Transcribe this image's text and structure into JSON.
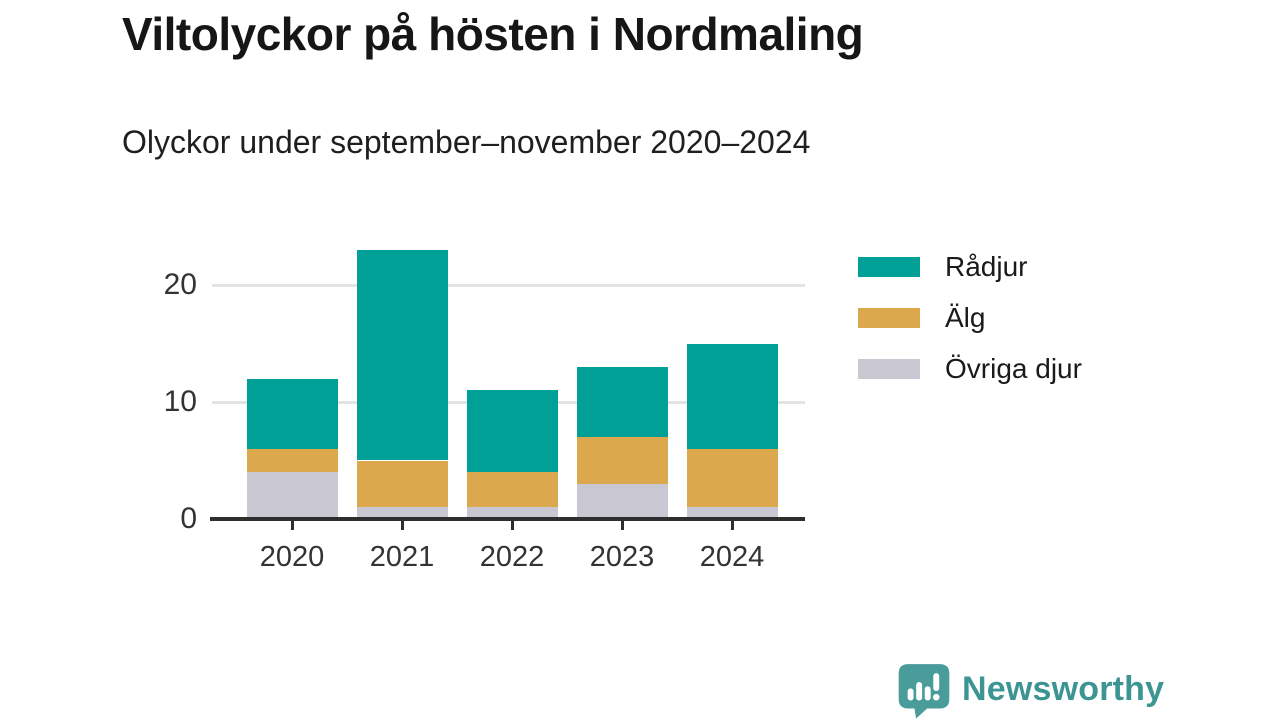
{
  "title": "Viltolyckor på hösten i Nordmaling",
  "subtitle": "Olyckor under september–november 2020–2024",
  "branding": {
    "logo_text": "Newsworthy",
    "logo_icon": "speech-bubble-bar-chart",
    "logo_icon_color": "#4a9c9b",
    "logo_text_color": "#3d9593"
  },
  "colors": {
    "radjur": "#00a096",
    "alg": "#dba84e",
    "ovriga_djur": "#c9c7d1",
    "axis": "#2e2e2e",
    "grid": "#e3e3e3",
    "background": "#ffffff"
  },
  "chart_data": {
    "type": "bar",
    "stacked": true,
    "title": "Viltolyckor på hösten i Nordmaling",
    "subtitle": "Olyckor under september–november 2020–2024",
    "categories": [
      "2020",
      "2021",
      "2022",
      "2023",
      "2024"
    ],
    "series": [
      {
        "name": "Rådjur",
        "color": "#00a096",
        "values": [
          6,
          18,
          7,
          6,
          9
        ]
      },
      {
        "name": "Älg",
        "color": "#dba84e",
        "values": [
          2,
          4,
          3,
          4,
          5
        ]
      },
      {
        "name": "Övriga djur",
        "color": "#c9c7d1",
        "values": [
          4,
          1,
          1,
          3,
          1
        ]
      }
    ],
    "stack_order_bottom_to_top": [
      "Övriga djur",
      "Älg",
      "Rådjur"
    ],
    "totals": [
      12,
      23,
      11,
      13,
      15
    ],
    "xlabel": "",
    "ylabel": "",
    "yticks": [
      0,
      10,
      20
    ],
    "ylim": [
      0,
      24
    ],
    "grid": "horizontal",
    "legend_position": "right"
  }
}
